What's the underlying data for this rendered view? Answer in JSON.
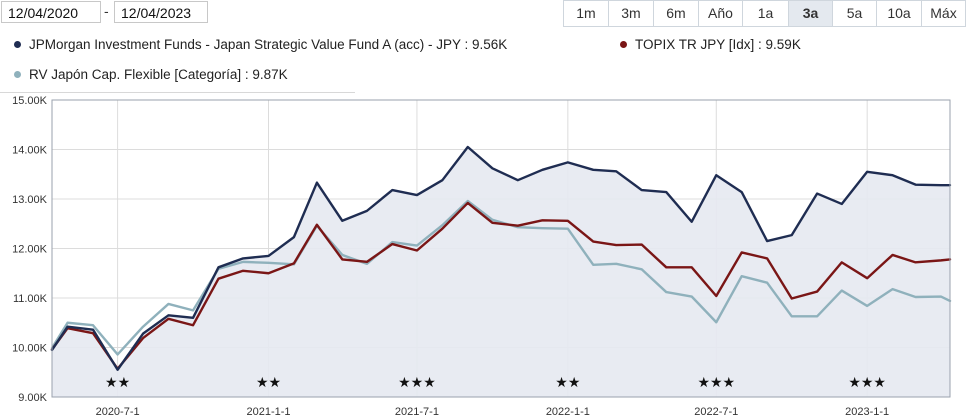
{
  "date_range": {
    "start": "12/04/2020",
    "separator": "-",
    "end": "12/04/2023"
  },
  "range_buttons": [
    {
      "label": "1m",
      "active": false
    },
    {
      "label": "3m",
      "active": false
    },
    {
      "label": "6m",
      "active": false
    },
    {
      "label": "Año",
      "active": false
    },
    {
      "label": "1a",
      "active": false
    },
    {
      "label": "3a",
      "active": true
    },
    {
      "label": "5a",
      "active": false
    },
    {
      "label": "10a",
      "active": false
    },
    {
      "label": "Máx",
      "active": false
    }
  ],
  "legend": [
    {
      "text": "JPMorgan Investment Funds - Japan Strategic Value Fund A (acc) - JPY : 9.56K",
      "color": "#1f2d52"
    },
    {
      "text": "TOPIX TR JPY [Idx] : 9.59K",
      "color": "#7a1616"
    },
    {
      "text": "RV Japón Cap. Flexible [Categoría] : 9.87K",
      "color": "#8fb1bc"
    }
  ],
  "chart_data": {
    "type": "line",
    "title": "",
    "xlabel": "",
    "ylabel": "",
    "ylim": [
      9000,
      15000
    ],
    "xlim": [
      "2020-04-12",
      "2023-04-12"
    ],
    "y_ticks": [
      9000,
      10000,
      11000,
      12000,
      13000,
      14000,
      15000
    ],
    "y_tick_labels": [
      "9.00K",
      "10.00K",
      "11.00K",
      "12.00K",
      "13.00K",
      "14.00K",
      "15.00K"
    ],
    "x_ticks": [
      "2020-07-01",
      "2021-01-01",
      "2021-07-01",
      "2022-01-01",
      "2022-07-01",
      "2023-01-01"
    ],
    "x_tick_labels": [
      "2020-7-1",
      "2021-1-1",
      "2021-7-1",
      "2022-1-1",
      "2022-7-1",
      "2023-1-1"
    ],
    "grid": true,
    "x": [
      "2020-04-12",
      "2020-05-01",
      "2020-06-01",
      "2020-07-01",
      "2020-08-01",
      "2020-09-01",
      "2020-10-01",
      "2020-11-01",
      "2020-12-01",
      "2021-01-01",
      "2021-02-01",
      "2021-03-01",
      "2021-04-01",
      "2021-05-01",
      "2021-06-01",
      "2021-07-01",
      "2021-08-01",
      "2021-09-01",
      "2021-10-01",
      "2021-11-01",
      "2021-12-01",
      "2022-01-01",
      "2022-02-01",
      "2022-03-01",
      "2022-04-01",
      "2022-05-01",
      "2022-06-01",
      "2022-07-01",
      "2022-08-01",
      "2022-09-01",
      "2022-10-01",
      "2022-11-01",
      "2022-12-01",
      "2023-01-01",
      "2023-02-01",
      "2023-03-01",
      "2023-04-01",
      "2023-04-12"
    ],
    "series": [
      {
        "name": "JPMorgan Investment Funds - Japan Strategic Value Fund A (acc) - JPY",
        "color": "#1f2d52",
        "fill": true,
        "values": [
          9950,
          10420,
          10360,
          9550,
          10280,
          10650,
          10600,
          11620,
          11800,
          11850,
          12230,
          13330,
          12560,
          12760,
          13180,
          13080,
          13380,
          14050,
          13620,
          13380,
          13590,
          13740,
          13590,
          13560,
          13180,
          13140,
          12540,
          13480,
          13140,
          12150,
          12270,
          13110,
          12900,
          13550,
          13480,
          13290,
          13280,
          13280
        ]
      },
      {
        "name": "TOPIX TR JPY [Idx]",
        "color": "#7a1616",
        "fill": false,
        "values": [
          9960,
          10390,
          10290,
          9570,
          10190,
          10580,
          10450,
          11390,
          11550,
          11500,
          11700,
          12480,
          11780,
          11730,
          12090,
          11960,
          12400,
          12920,
          12520,
          12460,
          12570,
          12560,
          12140,
          12070,
          12080,
          11620,
          11620,
          11040,
          11920,
          11800,
          10990,
          11130,
          11720,
          11400,
          11870,
          11720,
          11760,
          11780
        ]
      },
      {
        "name": "RV Japón Cap. Flexible [Categoría]",
        "color": "#8fb1bc",
        "fill": false,
        "values": [
          9990,
          10500,
          10450,
          9860,
          10420,
          10880,
          10750,
          11590,
          11730,
          11710,
          11680,
          12460,
          11870,
          11690,
          12130,
          12060,
          12470,
          12960,
          12580,
          12430,
          12410,
          12400,
          11670,
          11690,
          11580,
          11120,
          11030,
          10510,
          11440,
          11310,
          10630,
          10630,
          11150,
          10840,
          11180,
          11020,
          11030,
          10940
        ]
      }
    ],
    "ratings": [
      {
        "x": "2020-07-01",
        "stars": "★★"
      },
      {
        "x": "2021-01-01",
        "stars": "★★"
      },
      {
        "x": "2021-07-01",
        "stars": "★★★"
      },
      {
        "x": "2022-01-01",
        "stars": "★★"
      },
      {
        "x": "2022-07-01",
        "stars": "★★★"
      },
      {
        "x": "2023-01-01",
        "stars": "★★★"
      }
    ]
  }
}
